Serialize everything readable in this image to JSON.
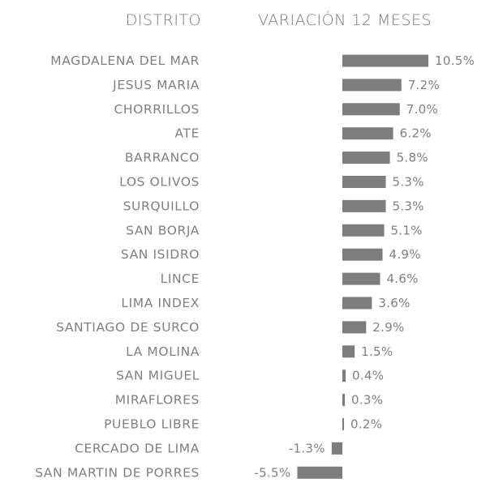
{
  "chart_data": {
    "type": "bar",
    "orientation": "horizontal",
    "header_category": "DISTRITO",
    "header_value": "VARIACIÓN 12 MESES",
    "bar_color": "#7d7d7d",
    "text_color": "#808080",
    "categories": [
      "MAGDALENA DEL MAR",
      "JESUS MARIA",
      "CHORRILLOS",
      "ATE",
      "BARRANCO",
      "LOS OLIVOS",
      "SURQUILLO",
      "SAN BORJA",
      "SAN ISIDRO",
      "LINCE",
      "LIMA INDEX",
      "SANTIAGO DE SURCO",
      "LA MOLINA",
      "SAN MIGUEL",
      "MIRAFLORES",
      "PUEBLO LIBRE",
      "CERCADO DE LIMA",
      "SAN MARTIN DE PORRES"
    ],
    "values": [
      10.5,
      7.2,
      7.0,
      6.2,
      5.8,
      5.3,
      5.3,
      5.1,
      4.9,
      4.6,
      3.6,
      2.9,
      1.5,
      0.4,
      0.3,
      0.2,
      -1.3,
      -5.5
    ],
    "value_labels": [
      "10.5%",
      "7.2%",
      "7.0%",
      "6.2%",
      "5.8%",
      "5.3%",
      "5.3%",
      "5.1%",
      "4.9%",
      "4.6%",
      "3.6%",
      "2.9%",
      "1.5%",
      "0.4%",
      "0.3%",
      "0.2%",
      "-1.3%",
      "-5.5%"
    ],
    "unit": "%",
    "grid": false,
    "legend": "none"
  }
}
